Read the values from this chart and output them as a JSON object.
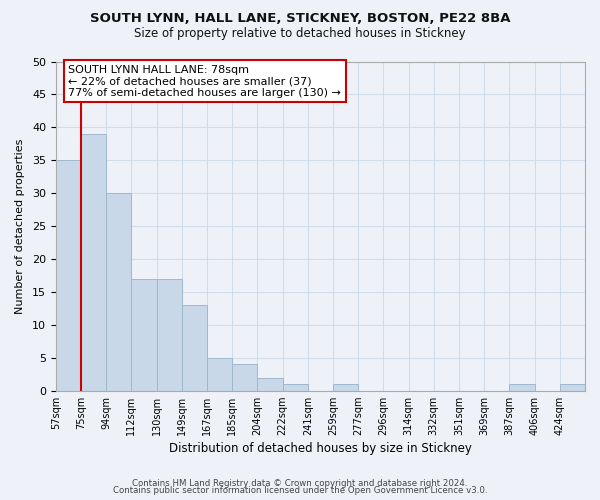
{
  "title1": "SOUTH LYNN, HALL LANE, STICKNEY, BOSTON, PE22 8BA",
  "title2": "Size of property relative to detached houses in Stickney",
  "xlabel": "Distribution of detached houses by size in Stickney",
  "ylabel": "Number of detached properties",
  "bin_labels": [
    "57sqm",
    "75sqm",
    "94sqm",
    "112sqm",
    "130sqm",
    "149sqm",
    "167sqm",
    "185sqm",
    "204sqm",
    "222sqm",
    "241sqm",
    "259sqm",
    "277sqm",
    "296sqm",
    "314sqm",
    "332sqm",
    "351sqm",
    "369sqm",
    "387sqm",
    "406sqm",
    "424sqm"
  ],
  "bar_values": [
    35,
    39,
    30,
    17,
    17,
    13,
    5,
    4,
    2,
    1,
    0,
    1,
    0,
    0,
    0,
    0,
    0,
    0,
    1,
    0,
    1
  ],
  "bar_color": "#c8d8e8",
  "bar_edge_color": "#a0b8cc",
  "vline_x": 1.0,
  "vline_color": "#cc0000",
  "annotation_line1": "SOUTH LYNN HALL LANE: 78sqm",
  "annotation_line2": "← 22% of detached houses are smaller (37)",
  "annotation_line3": "77% of semi-detached houses are larger (130) →",
  "annotation_box_color": "#ffffff",
  "annotation_box_edge": "#cc0000",
  "ylim": [
    0,
    50
  ],
  "yticks": [
    0,
    5,
    10,
    15,
    20,
    25,
    30,
    35,
    40,
    45,
    50
  ],
  "grid_color": "#d0dcea",
  "footer1": "Contains HM Land Registry data © Crown copyright and database right 2024.",
  "footer2": "Contains public sector information licensed under the Open Government Licence v3.0.",
  "bg_color": "#eef2f8"
}
